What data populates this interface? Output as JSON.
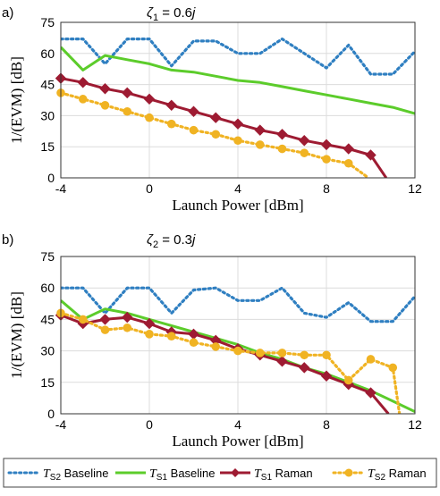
{
  "chart_data": [
    {
      "type": "line",
      "panel_label": "a)",
      "title_symbol": "ζ",
      "title_subscript": "1",
      "title_value": " = 0.6",
      "title_imag": "j",
      "xlabel": "Launch Power [dBm]",
      "ylabel": "1/(EVM) [dB]",
      "xlim": [
        -4,
        12
      ],
      "ylim": [
        0,
        75
      ],
      "xticks": [
        "-4",
        "0",
        "4",
        "8",
        "12"
      ],
      "yticks": [
        "0",
        "15",
        "30",
        "45",
        "60",
        "75"
      ],
      "grid": true,
      "series": [
        {
          "name": "TS2 Baseline",
          "color": "#2f7fc1",
          "style": "dotted",
          "x": [
            -4,
            -3,
            -2,
            -1,
            0,
            1,
            2,
            3,
            4,
            5,
            6,
            7,
            8,
            9,
            10,
            11,
            12
          ],
          "y": [
            67,
            67,
            55,
            67,
            67,
            54,
            66,
            66,
            60,
            60,
            67,
            60,
            53,
            64,
            50,
            50,
            61
          ]
        },
        {
          "name": "TS1 Baseline",
          "color": "#5ccc2b",
          "style": "solid",
          "x": [
            -4,
            -3,
            -2,
            -1,
            0,
            1,
            2,
            3,
            4,
            5,
            6,
            7,
            8,
            9,
            10,
            11,
            12
          ],
          "y": [
            63,
            52,
            59,
            57,
            55,
            52,
            51,
            49,
            47,
            46,
            44,
            42,
            40,
            38,
            36,
            34,
            31
          ]
        },
        {
          "name": "TS1 Raman",
          "color": "#9e1b32",
          "style": "solid",
          "x": [
            -4,
            -3,
            -2,
            -1,
            0,
            1,
            2,
            3,
            4,
            5,
            6,
            7,
            8,
            9,
            10,
            10.7
          ],
          "y": [
            48,
            46,
            43,
            41,
            38,
            35,
            32,
            29,
            26,
            23,
            21,
            18,
            16,
            14,
            11,
            0
          ]
        },
        {
          "name": "TS2 Raman",
          "color": "#f0b323",
          "style": "dotted",
          "x": [
            -4,
            -3,
            -2,
            -1,
            0,
            1,
            2,
            3,
            4,
            5,
            6,
            7,
            8,
            9,
            9.9
          ],
          "y": [
            41,
            38,
            35,
            32,
            29,
            26,
            23,
            21,
            18,
            16,
            14,
            12,
            9,
            7,
            0
          ]
        }
      ]
    },
    {
      "type": "line",
      "panel_label": "b)",
      "title_symbol": "ζ",
      "title_subscript": "2",
      "title_value": " = 0.3",
      "title_imag": "j",
      "xlabel": "Launch Power [dBm]",
      "ylabel": "1/(EVM) [dB]",
      "xlim": [
        -4,
        12
      ],
      "ylim": [
        0,
        75
      ],
      "xticks": [
        "-4",
        "0",
        "4",
        "8",
        "12"
      ],
      "yticks": [
        "0",
        "15",
        "30",
        "45",
        "60",
        "75"
      ],
      "grid": true,
      "series": [
        {
          "name": "TS2 Baseline",
          "color": "#2f7fc1",
          "style": "dotted",
          "x": [
            -4,
            -3,
            -2,
            -1,
            0,
            1,
            2,
            3,
            4,
            5,
            6,
            7,
            8,
            9,
            10,
            11,
            12
          ],
          "y": [
            60,
            60,
            48,
            60,
            60,
            48,
            59,
            60,
            54,
            54,
            60,
            48,
            46,
            53,
            44,
            44,
            56
          ]
        },
        {
          "name": "TS1 Baseline",
          "color": "#5ccc2b",
          "style": "solid",
          "x": [
            -4,
            -3,
            -2,
            -1,
            0,
            1,
            2,
            3,
            4,
            5,
            6,
            7,
            8,
            9,
            10,
            11,
            12
          ],
          "y": [
            54,
            45,
            50,
            48,
            45,
            42,
            39,
            36,
            33,
            29,
            26,
            22,
            19,
            15,
            11,
            6,
            1
          ]
        },
        {
          "name": "TS1 Raman",
          "color": "#9e1b32",
          "style": "solid",
          "x": [
            -4,
            -3,
            -2,
            -1,
            0,
            1,
            2,
            3,
            4,
            5,
            6,
            7,
            8,
            9,
            10,
            10.8
          ],
          "y": [
            47,
            43,
            45,
            46,
            43,
            39,
            38,
            35,
            31,
            28,
            25,
            22,
            18,
            14,
            10,
            0
          ]
        },
        {
          "name": "TS2 Raman",
          "color": "#f0b323",
          "style": "dotted",
          "x": [
            -4,
            -3,
            -2,
            -1,
            0,
            1,
            2,
            3,
            4,
            5,
            6,
            7,
            8,
            9,
            10,
            11,
            11.3
          ],
          "y": [
            48,
            45,
            40,
            41,
            38,
            37,
            34,
            32,
            30,
            29,
            29,
            28,
            28,
            16,
            26,
            22,
            0
          ]
        }
      ]
    }
  ],
  "legend": {
    "position": "bottom",
    "items": [
      {
        "symbol": "T",
        "sub": "S2",
        "text": " Baseline",
        "color": "#2f7fc1",
        "style": "dotted",
        "marker": "none"
      },
      {
        "symbol": "T",
        "sub": "S1",
        "text": " Baseline",
        "color": "#5ccc2b",
        "style": "solid",
        "marker": "none"
      },
      {
        "symbol": "T",
        "sub": "S1",
        "text": " Raman",
        "color": "#9e1b32",
        "style": "solid",
        "marker": "diamond"
      },
      {
        "symbol": "T",
        "sub": "S2",
        "text": " Raman",
        "color": "#f0b323",
        "style": "dotted",
        "marker": "circle"
      }
    ]
  }
}
